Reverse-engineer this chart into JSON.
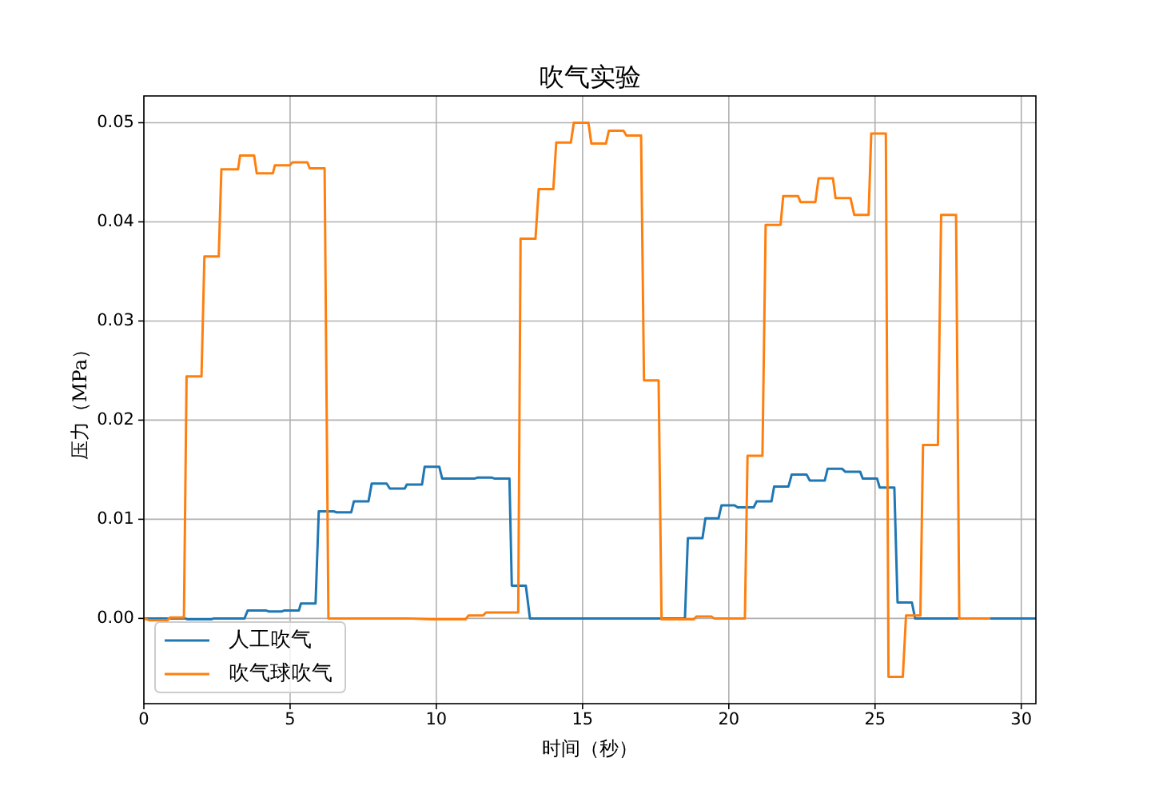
{
  "chart_data": {
    "type": "line",
    "title": "吹气实验",
    "xlabel": "时间（秒）",
    "ylabel": "压力（MPa）",
    "xlim": [
      0,
      30.5
    ],
    "ylim": [
      -0.0086,
      0.0527
    ],
    "xticks": [
      0,
      5,
      10,
      15,
      20,
      25,
      30
    ],
    "yticks": [
      {
        "value": 0,
        "label": "0.00"
      },
      0.01,
      0.02,
      0.03,
      0.04,
      0.05
    ],
    "grid": true,
    "legend": "bottom left",
    "series": [
      {
        "name": "人工吹气",
        "color": "#1f77b4",
        "x": [
          0,
          1.4,
          1.5,
          2.3,
          2.4,
          3.44,
          3.55,
          4.17,
          4.26,
          4.72,
          4.81,
          5.3,
          5.37,
          5.87,
          5.98,
          6.49,
          6.58,
          7.09,
          7.18,
          7.68,
          7.79,
          8.3,
          8.41,
          8.92,
          8.99,
          9.51,
          9.6,
          10.1,
          10.2,
          11.3,
          11.4,
          11.9,
          12.0,
          12.5,
          12.58,
          13.06,
          13.2,
          18.5,
          18.6,
          19.1,
          19.2,
          19.65,
          19.75,
          20.2,
          20.3,
          20.85,
          20.95,
          21.46,
          21.55,
          22.04,
          22.15,
          22.66,
          22.77,
          23.28,
          23.38,
          23.87,
          23.98,
          24.49,
          24.58,
          25.07,
          25.16,
          25.66,
          25.77,
          26.26,
          26.37,
          30.5
        ],
        "values": [
          0,
          0,
          -0.0001,
          -0.0001,
          0,
          0,
          0.0008,
          0.0008,
          0.0007,
          0.0007,
          0.0008,
          0.0008,
          0.0015,
          0.0015,
          0.0108,
          0.0108,
          0.0107,
          0.0107,
          0.0118,
          0.0118,
          0.0136,
          0.0136,
          0.0131,
          0.0131,
          0.0135,
          0.0135,
          0.0153,
          0.0153,
          0.0141,
          0.0141,
          0.0142,
          0.0142,
          0.0141,
          0.0141,
          0.0033,
          0.0033,
          0,
          0,
          0.0081,
          0.0081,
          0.0101,
          0.0101,
          0.0114,
          0.0114,
          0.0112,
          0.0112,
          0.0118,
          0.0118,
          0.0133,
          0.0133,
          0.0145,
          0.0145,
          0.0139,
          0.0139,
          0.0151,
          0.0151,
          0.0148,
          0.0148,
          0.0141,
          0.0141,
          0.0132,
          0.0132,
          0.0016,
          0.0016,
          0,
          0
        ]
      },
      {
        "name": "吹气球吹气",
        "color": "#ff7f0e",
        "x": [
          0,
          0.2,
          0.8,
          0.9,
          1.37,
          1.46,
          1.97,
          2.07,
          2.56,
          2.65,
          3.22,
          3.29,
          3.77,
          3.86,
          4.41,
          4.48,
          4.99,
          5.08,
          5.59,
          5.67,
          6.18,
          6.31,
          9.0,
          9.8,
          11.0,
          11.1,
          11.6,
          11.7,
          12.8,
          12.88,
          13.39,
          13.5,
          14.0,
          14.1,
          14.6,
          14.7,
          15.2,
          15.3,
          15.8,
          15.9,
          16.4,
          16.5,
          17.0,
          17.1,
          17.6,
          17.7,
          18.8,
          18.9,
          19.4,
          19.5,
          20.55,
          20.64,
          21.15,
          21.26,
          21.77,
          21.86,
          22.37,
          22.45,
          22.96,
          23.07,
          23.56,
          23.65,
          24.16,
          24.29,
          24.78,
          24.87,
          25.37,
          25.46,
          25.95,
          26.06,
          26.55,
          26.64,
          27.15,
          27.26,
          27.77,
          27.88,
          28.9
        ],
        "values": [
          0,
          -0.0002,
          -0.0002,
          0.0001,
          0.0001,
          0.0244,
          0.0244,
          0.0365,
          0.0365,
          0.0453,
          0.0453,
          0.0467,
          0.0467,
          0.0449,
          0.0449,
          0.0457,
          0.0457,
          0.046,
          0.046,
          0.0454,
          0.0454,
          0,
          0,
          -0.0001,
          -0.0001,
          0.0003,
          0.0003,
          0.0006,
          0.0006,
          0.0383,
          0.0383,
          0.0433,
          0.0433,
          0.048,
          0.048,
          0.05,
          0.05,
          0.0479,
          0.0479,
          0.0492,
          0.0492,
          0.0487,
          0.0487,
          0.024,
          0.024,
          -0.0001,
          -0.0001,
          0.0002,
          0.0002,
          0,
          0,
          0.0164,
          0.0164,
          0.0397,
          0.0397,
          0.0426,
          0.0426,
          0.042,
          0.042,
          0.0444,
          0.0444,
          0.0424,
          0.0424,
          0.0407,
          0.0407,
          0.0489,
          0.0489,
          -0.0059,
          -0.0059,
          0.0003,
          0.0003,
          0.0175,
          0.0175,
          0.0407,
          0.0407,
          0,
          0
        ]
      }
    ]
  }
}
